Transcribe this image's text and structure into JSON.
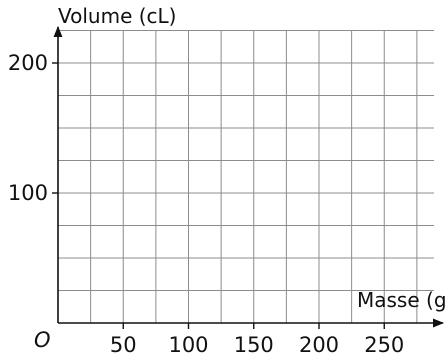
{
  "chart_data": {
    "type": "scatter",
    "xlabel": "Masse (g)",
    "ylabel": "Volume (cL)",
    "origin_label": "O",
    "xlim": [
      0,
      290
    ],
    "ylim": [
      0,
      225
    ],
    "x_grid_step": 25,
    "y_grid_step": 25,
    "x_ticks": [
      50,
      100,
      150,
      200,
      250
    ],
    "y_ticks": [
      100,
      200
    ],
    "grid": true,
    "series": []
  }
}
